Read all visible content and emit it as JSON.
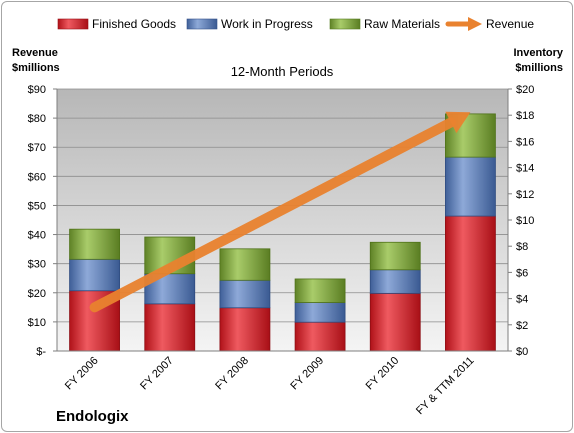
{
  "chart_data": {
    "type": "bar",
    "stacked": true,
    "title": "12-Month Periods",
    "company": "Endologix",
    "categories": [
      "FY 2006",
      "FY 2007",
      "FY 2008",
      "FY 2009",
      "FY 2010",
      "FY & TTM 2011"
    ],
    "left_axis": {
      "title_line1": "Revenue",
      "title_line2": "$millions",
      "ylim": [
        0,
        90
      ],
      "ticks": [
        0,
        10,
        20,
        30,
        40,
        50,
        60,
        70,
        80,
        90
      ],
      "tick_labels": [
        "$-",
        "$10",
        "$20",
        "$30",
        "$40",
        "$50",
        "$60",
        "$70",
        "$80",
        "$90"
      ]
    },
    "right_axis": {
      "title_line1": "Inventory",
      "title_line2": "$millions",
      "ylim": [
        0,
        20
      ],
      "ticks": [
        0,
        2,
        4,
        6,
        8,
        10,
        12,
        14,
        16,
        18,
        20
      ],
      "tick_labels": [
        "$0",
        "$2",
        "$4",
        "$6",
        "$8",
        "$10",
        "$12",
        "$14",
        "$16",
        "$18",
        "$20"
      ]
    },
    "series": [
      {
        "name": "Finished Goods",
        "axis": "right",
        "kind": "bar",
        "color": "#e2242b",
        "values": [
          4.6,
          3.6,
          3.3,
          2.2,
          4.4,
          10.3
        ]
      },
      {
        "name": "Work in Progress",
        "axis": "right",
        "kind": "bar",
        "color": "#5a7fbd",
        "values": [
          2.4,
          2.3,
          2.1,
          1.5,
          1.8,
          4.5
        ]
      },
      {
        "name": "Raw Materials",
        "axis": "right",
        "kind": "bar",
        "color": "#84ab3c",
        "values": [
          2.3,
          2.8,
          2.4,
          1.8,
          2.1,
          3.3
        ]
      },
      {
        "name": "Revenue",
        "axis": "left",
        "kind": "arrow",
        "color": "#e9822f",
        "values": [
          15,
          26,
          36,
          52,
          67,
          82
        ]
      }
    ],
    "legend_position": "top",
    "grid": true
  }
}
